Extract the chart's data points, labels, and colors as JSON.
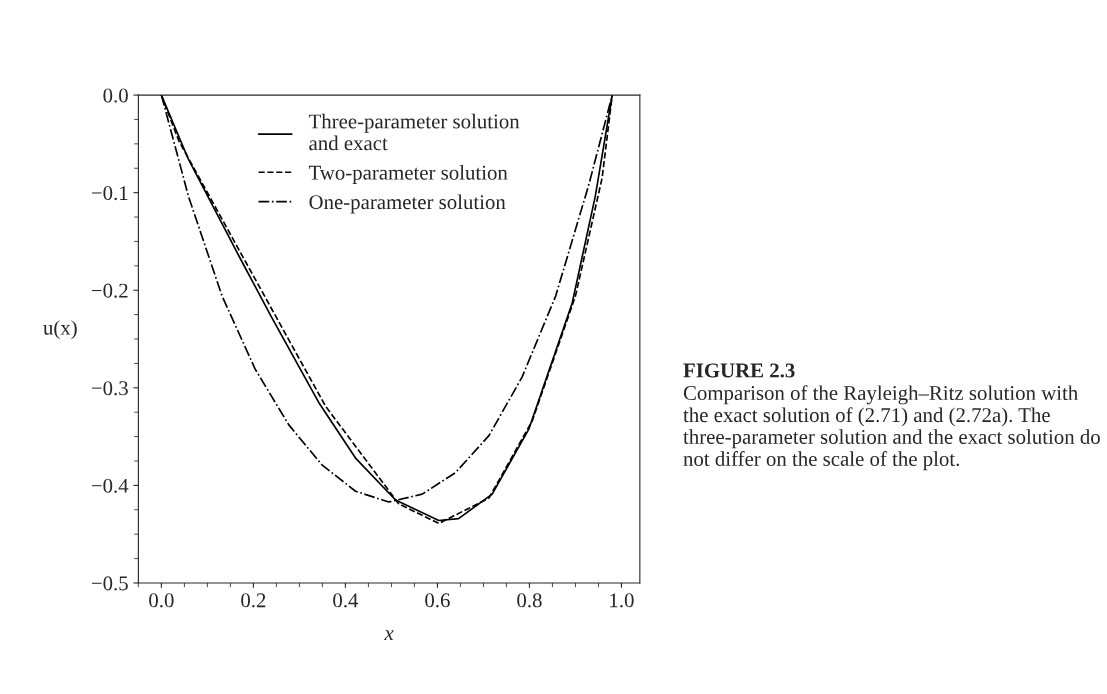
{
  "chart_data": {
    "type": "line",
    "title": "FIGURE 2.3",
    "annotations": [
      "Comparison of the Rayleigh–Ritz solution with the exact solution of (2.71) and (2.72a). The three-parameter solution and the exact solution do not differ on the scale of the plot."
    ],
    "xlabel": "x",
    "ylabel": "u(x)",
    "xlim": [
      -0.05,
      1.04
    ],
    "ylim": [
      -0.5,
      0.0
    ],
    "xticks": [
      {
        "value": 0,
        "label": "0.0"
      },
      0.2,
      0.4,
      0.6,
      0.8,
      {
        "value": 1,
        "label": "1.0"
      }
    ],
    "yticks": [
      {
        "value": 0,
        "label": "0.0"
      },
      {
        "value": -0.1,
        "label": "−0.1"
      },
      {
        "value": -0.2,
        "label": "−0.2"
      },
      {
        "value": -0.3,
        "label": "−0.3"
      },
      {
        "value": -0.4,
        "label": "−0.4"
      },
      {
        "value": -0.5,
        "label": "−0.5"
      }
    ],
    "grid": false,
    "legend": "top",
    "series": [
      {
        "name": "Three-parameter solution\nand exact",
        "color": "#000000",
        "line_style": "solid",
        "x": [
          0,
          0.059,
          0.172,
          0.24,
          0.342,
          0.422,
          0.509,
          0.603,
          0.646,
          0.719,
          0.799,
          0.893,
          0.943,
          0.98
        ],
        "values": [
          0,
          -0.066,
          -0.168,
          -0.228,
          -0.315,
          -0.372,
          -0.415,
          -0.436,
          -0.434,
          -0.409,
          -0.342,
          -0.213,
          -0.104,
          0
        ]
      },
      {
        "name": "Two-parameter solution",
        "color": "#000000",
        "line_style": "dashed",
        "x": [
          0,
          0.038,
          0.175,
          0.357,
          0.516,
          0.603,
          0.712,
          0.806,
          0.9,
          0.958,
          0.98
        ],
        "values": [
          0,
          -0.047,
          -0.164,
          -0.319,
          -0.419,
          -0.439,
          -0.413,
          -0.334,
          -0.206,
          -0.085,
          0
        ]
      },
      {
        "name": "One-parameter solution",
        "color": "#000000",
        "line_style": "dashdot",
        "x": [
          0,
          0.059,
          0.132,
          0.204,
          0.277,
          0.349,
          0.422,
          0.494,
          0.567,
          0.639,
          0.712,
          0.784,
          0.857,
          0.929,
          0.98
        ],
        "values": [
          0,
          -0.104,
          -0.206,
          -0.281,
          -0.338,
          -0.379,
          -0.406,
          -0.417,
          -0.409,
          -0.387,
          -0.349,
          -0.289,
          -0.206,
          -0.092,
          0
        ]
      }
    ]
  }
}
